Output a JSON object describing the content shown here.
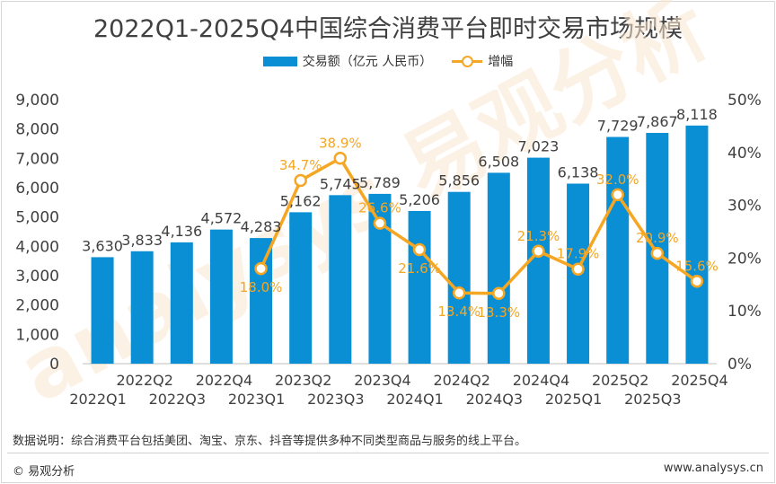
{
  "title": "2022Q1-2025Q4中国综合消费平台即时交易市场规模",
  "legend": {
    "bar": "交易额（亿元 人民币）",
    "line": "增幅"
  },
  "note": "数据说明：综合消费平台包括美团、淘宝、京东、抖音等提供多种不同类型商品与服务的线上平台。",
  "brand": "© 易观分析",
  "site": "www.analysys.cn",
  "watermark": "analysys 易观分析",
  "colors": {
    "bar": "#0a8fd4",
    "line": "#f5a623",
    "text": "#404040",
    "watermark": "#fbe7d0"
  },
  "chart_data": {
    "type": "bar",
    "categories": [
      "2022Q1",
      "2022Q2",
      "2022Q3",
      "2022Q4",
      "2023Q1",
      "2023Q2",
      "2023Q3",
      "2023Q4",
      "2024Q1",
      "2024Q2",
      "2024Q3",
      "2024Q4",
      "2025Q1",
      "2025Q2",
      "2025Q3",
      "2025Q4"
    ],
    "series": [
      {
        "name": "交易额（亿元 人民币）",
        "type": "bar",
        "axis": "left",
        "values": [
          3630,
          3833,
          4136,
          4572,
          4283,
          5162,
          5745,
          5789,
          5206,
          5856,
          6508,
          7023,
          6138,
          7729,
          7867,
          8118
        ],
        "labels": [
          "3,630",
          "3,833",
          "4,136",
          "4,572",
          "4,283",
          "5,162",
          "5,745",
          "5,789",
          "5,206",
          "5,856",
          "6,508",
          "7,023",
          "6,138",
          "7,729",
          "7,867",
          "8,118"
        ]
      },
      {
        "name": "增幅",
        "type": "line",
        "axis": "right",
        "values": [
          null,
          null,
          null,
          null,
          18.0,
          34.7,
          38.9,
          26.6,
          21.6,
          13.4,
          13.3,
          21.3,
          17.9,
          32.0,
          20.9,
          15.6
        ],
        "labels": [
          null,
          null,
          null,
          null,
          "18.0%",
          "34.7%",
          "38.9%",
          "26.6%",
          "21.6%",
          "13.4%",
          "13.3%",
          "21.3%",
          "17.9%",
          "32.0%",
          "20.9%",
          "15.6%"
        ]
      }
    ],
    "ylim_left": [
      0,
      9000
    ],
    "yticks_left": [
      "0",
      "1,000",
      "2,000",
      "3,000",
      "4,000",
      "5,000",
      "6,000",
      "7,000",
      "8,000",
      "9,000"
    ],
    "ylim_right": [
      0,
      50
    ],
    "yticks_right": [
      "0%",
      "10%",
      "20%",
      "30%",
      "40%",
      "50%"
    ],
    "grid": false,
    "legend_position": "top-center"
  }
}
